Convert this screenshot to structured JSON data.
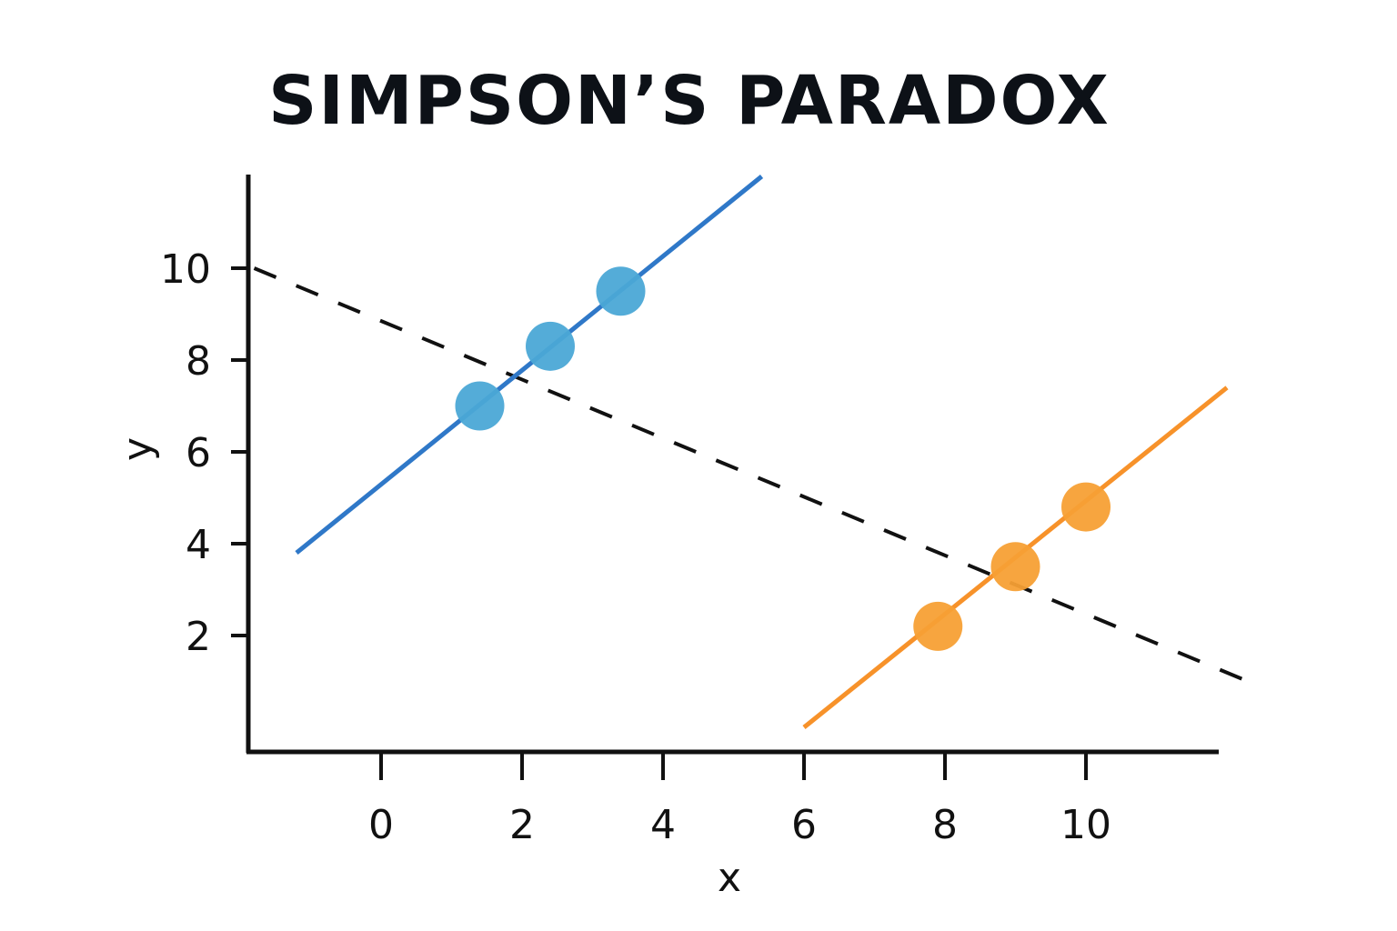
{
  "chart_data": {
    "type": "scatter",
    "title": "SIMPSON’S PARADOX",
    "xlabel": "x",
    "ylabel": "y",
    "xlim": [
      -2,
      11.5
    ],
    "ylim": [
      -0.6,
      12
    ],
    "xticks": [
      0,
      2,
      4,
      6,
      8,
      10
    ],
    "yticks": [
      2,
      4,
      6,
      8,
      10
    ],
    "grid": false,
    "series": [
      {
        "color": "#4ba8d6",
        "line_color": "#2f78c8",
        "points": [
          {
            "x": 1.4,
            "y": 7.0
          },
          {
            "x": 2.4,
            "y": 8.3
          },
          {
            "x": 3.4,
            "y": 9.5
          }
        ],
        "trend": [
          [
            -1.2,
            3.8
          ],
          [
            5.4,
            12.0
          ]
        ]
      },
      {
        "color": "#f7a035",
        "line_color": "#f7922a",
        "points": [
          {
            "x": 7.9,
            "y": 2.2
          },
          {
            "x": 9.0,
            "y": 3.5
          },
          {
            "x": 10.0,
            "y": 4.8
          }
        ],
        "trend": [
          [
            6.0,
            0.0
          ],
          [
            12.0,
            7.4
          ]
        ]
      }
    ],
    "overall_trend": {
      "style": "dashed",
      "color": "#111111",
      "points": [
        [
          -1.8,
          10.0
        ],
        [
          12.3,
          1.0
        ]
      ]
    }
  }
}
